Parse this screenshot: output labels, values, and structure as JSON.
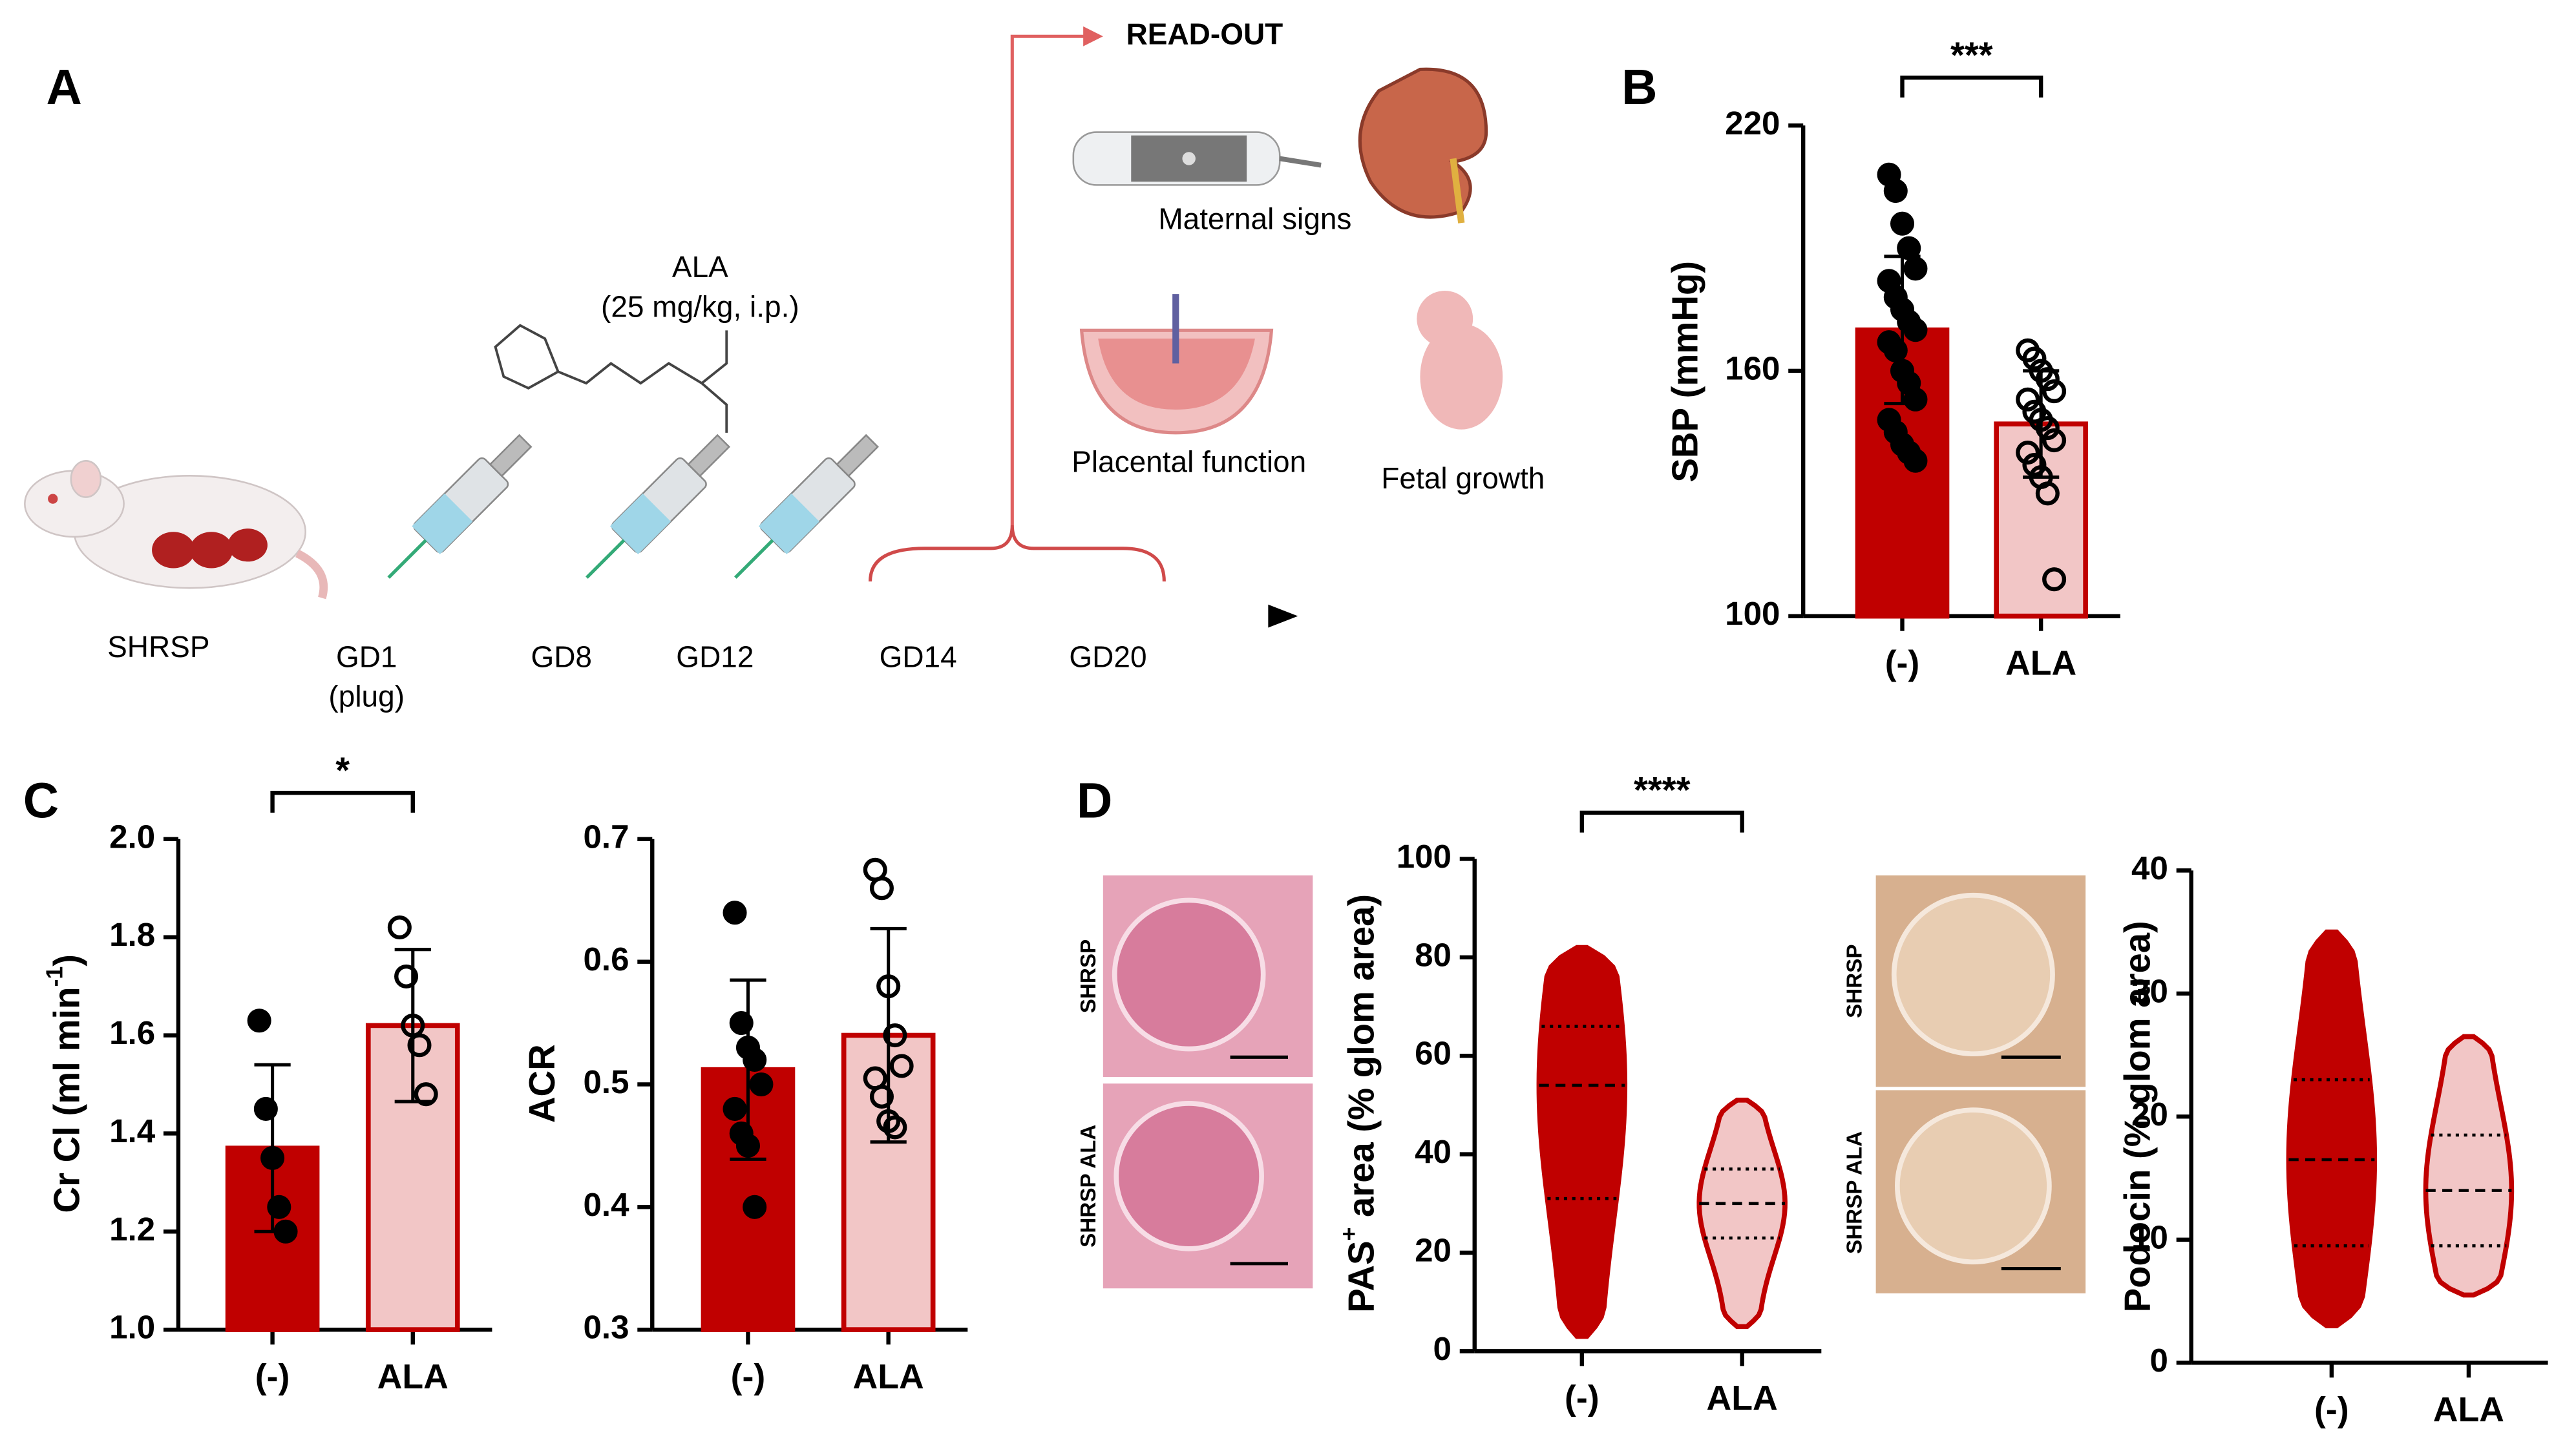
{
  "panel_labels": [
    "A",
    "B",
    "C",
    "D"
  ],
  "diagram": {
    "readout": "READ-OUT",
    "maternal": "Maternal signs",
    "placental": "Placental function",
    "fetal": "Fetal growth",
    "drug": "ALA",
    "dose": "(25 mg/kg, i.p.)",
    "strain": "SHRSP",
    "timepoints": [
      "GD1",
      "GD8",
      "GD12",
      "GD14",
      "GD20"
    ],
    "plug": "(plug)"
  },
  "histology": {
    "pas": [
      "SHRSP",
      "SHRSP ALA"
    ],
    "podocin": [
      "SHRSP",
      "SHRSP ALA"
    ]
  },
  "chart_data": [
    {
      "type": "bar",
      "ylabel": [
        {
          "text": "SBP (mmHg)"
        }
      ],
      "categories": [
        "(-)",
        "ALA"
      ],
      "values": [
        170,
        147
      ],
      "errors": [
        18,
        13
      ],
      "colors": [
        "#c00000",
        "#f2c6c6"
      ],
      "edge_color": "#c00000",
      "point_fill": [
        "#000000",
        "none"
      ],
      "points": [
        [
          208,
          204,
          196,
          190,
          185,
          182,
          178,
          175,
          172,
          170,
          167,
          165,
          160,
          157,
          153,
          148,
          145,
          142,
          140,
          138
        ],
        [
          165,
          163,
          160,
          158,
          155,
          153,
          150,
          148,
          146,
          143,
          140,
          137,
          134,
          130,
          109
        ]
      ],
      "ylim": [
        100,
        220
      ],
      "yticks": [
        100,
        160,
        220
      ],
      "significance": "***"
    },
    {
      "type": "bar",
      "ylabel": [
        {
          "text": "Cr Cl (ml min"
        },
        {
          "sup": "-1"
        },
        {
          "text": ")"
        }
      ],
      "categories": [
        "(-)",
        "ALA"
      ],
      "values": [
        1.37,
        1.62
      ],
      "errors": [
        0.17,
        0.155
      ],
      "colors": [
        "#c00000",
        "#f2c6c6"
      ],
      "edge_color": "#c00000",
      "point_fill": [
        "#000000",
        "none"
      ],
      "points": [
        [
          1.63,
          1.45,
          1.35,
          1.25,
          1.2
        ],
        [
          1.82,
          1.72,
          1.62,
          1.58,
          1.48
        ]
      ],
      "ylim": [
        1,
        2
      ],
      "yticks": [
        {
          "value": 1,
          "label": "1.0"
        },
        1.2,
        1.4,
        1.6,
        1.8,
        {
          "value": 2,
          "label": "2.0"
        }
      ],
      "significance": "*"
    },
    {
      "type": "bar",
      "ylabel": [
        {
          "text": "ACR"
        }
      ],
      "categories": [
        "(-)",
        "ALA"
      ],
      "values": [
        0.512,
        0.54
      ],
      "errors": [
        0.073,
        0.087
      ],
      "colors": [
        "#c00000",
        "#f2c6c6"
      ],
      "edge_color": "#c00000",
      "point_fill": [
        "#000000",
        "none"
      ],
      "points": [
        [
          0.64,
          0.55,
          0.53,
          0.52,
          0.5,
          0.48,
          0.46,
          0.45,
          0.4
        ],
        [
          0.675,
          0.66,
          0.58,
          0.54,
          0.515,
          0.505,
          0.49,
          0.47,
          0.465
        ]
      ],
      "ylim": [
        0.3,
        0.7
      ],
      "yticks": [
        0.3,
        0.4,
        0.5,
        0.6,
        0.7
      ]
    },
    {
      "type": "violin",
      "ylabel": [
        {
          "text": "PAS"
        },
        {
          "sup": "+"
        },
        {
          "text": " area (% glom area)"
        }
      ],
      "categories": [
        "(-)",
        "ALA"
      ],
      "colors": [
        "#c00000",
        "#f2c6c6"
      ],
      "edge_color": "#c00000",
      "mins": [
        3,
        5
      ],
      "q1": [
        31,
        23
      ],
      "medians": [
        54,
        30
      ],
      "q3": [
        66,
        37
      ],
      "maxs": [
        82,
        51
      ],
      "ylim": [
        0,
        100
      ],
      "yticks": [
        0,
        20,
        40,
        60,
        80,
        100
      ],
      "significance": "****"
    },
    {
      "type": "violin",
      "ylabel": [
        {
          "text": "Podocin (% glom area)"
        }
      ],
      "categories": [
        "(-)",
        "ALA"
      ],
      "colors": [
        "#c00000",
        "#f2c6c6"
      ],
      "edge_color": "#c00000",
      "mins": [
        3,
        5.5
      ],
      "q1": [
        9.5,
        9.5
      ],
      "medians": [
        16.5,
        14
      ],
      "q3": [
        23,
        18.5
      ],
      "maxs": [
        35,
        26.5
      ],
      "ylim": [
        0,
        40
      ],
      "yticks": [
        0,
        10,
        20,
        30,
        40
      ]
    }
  ]
}
